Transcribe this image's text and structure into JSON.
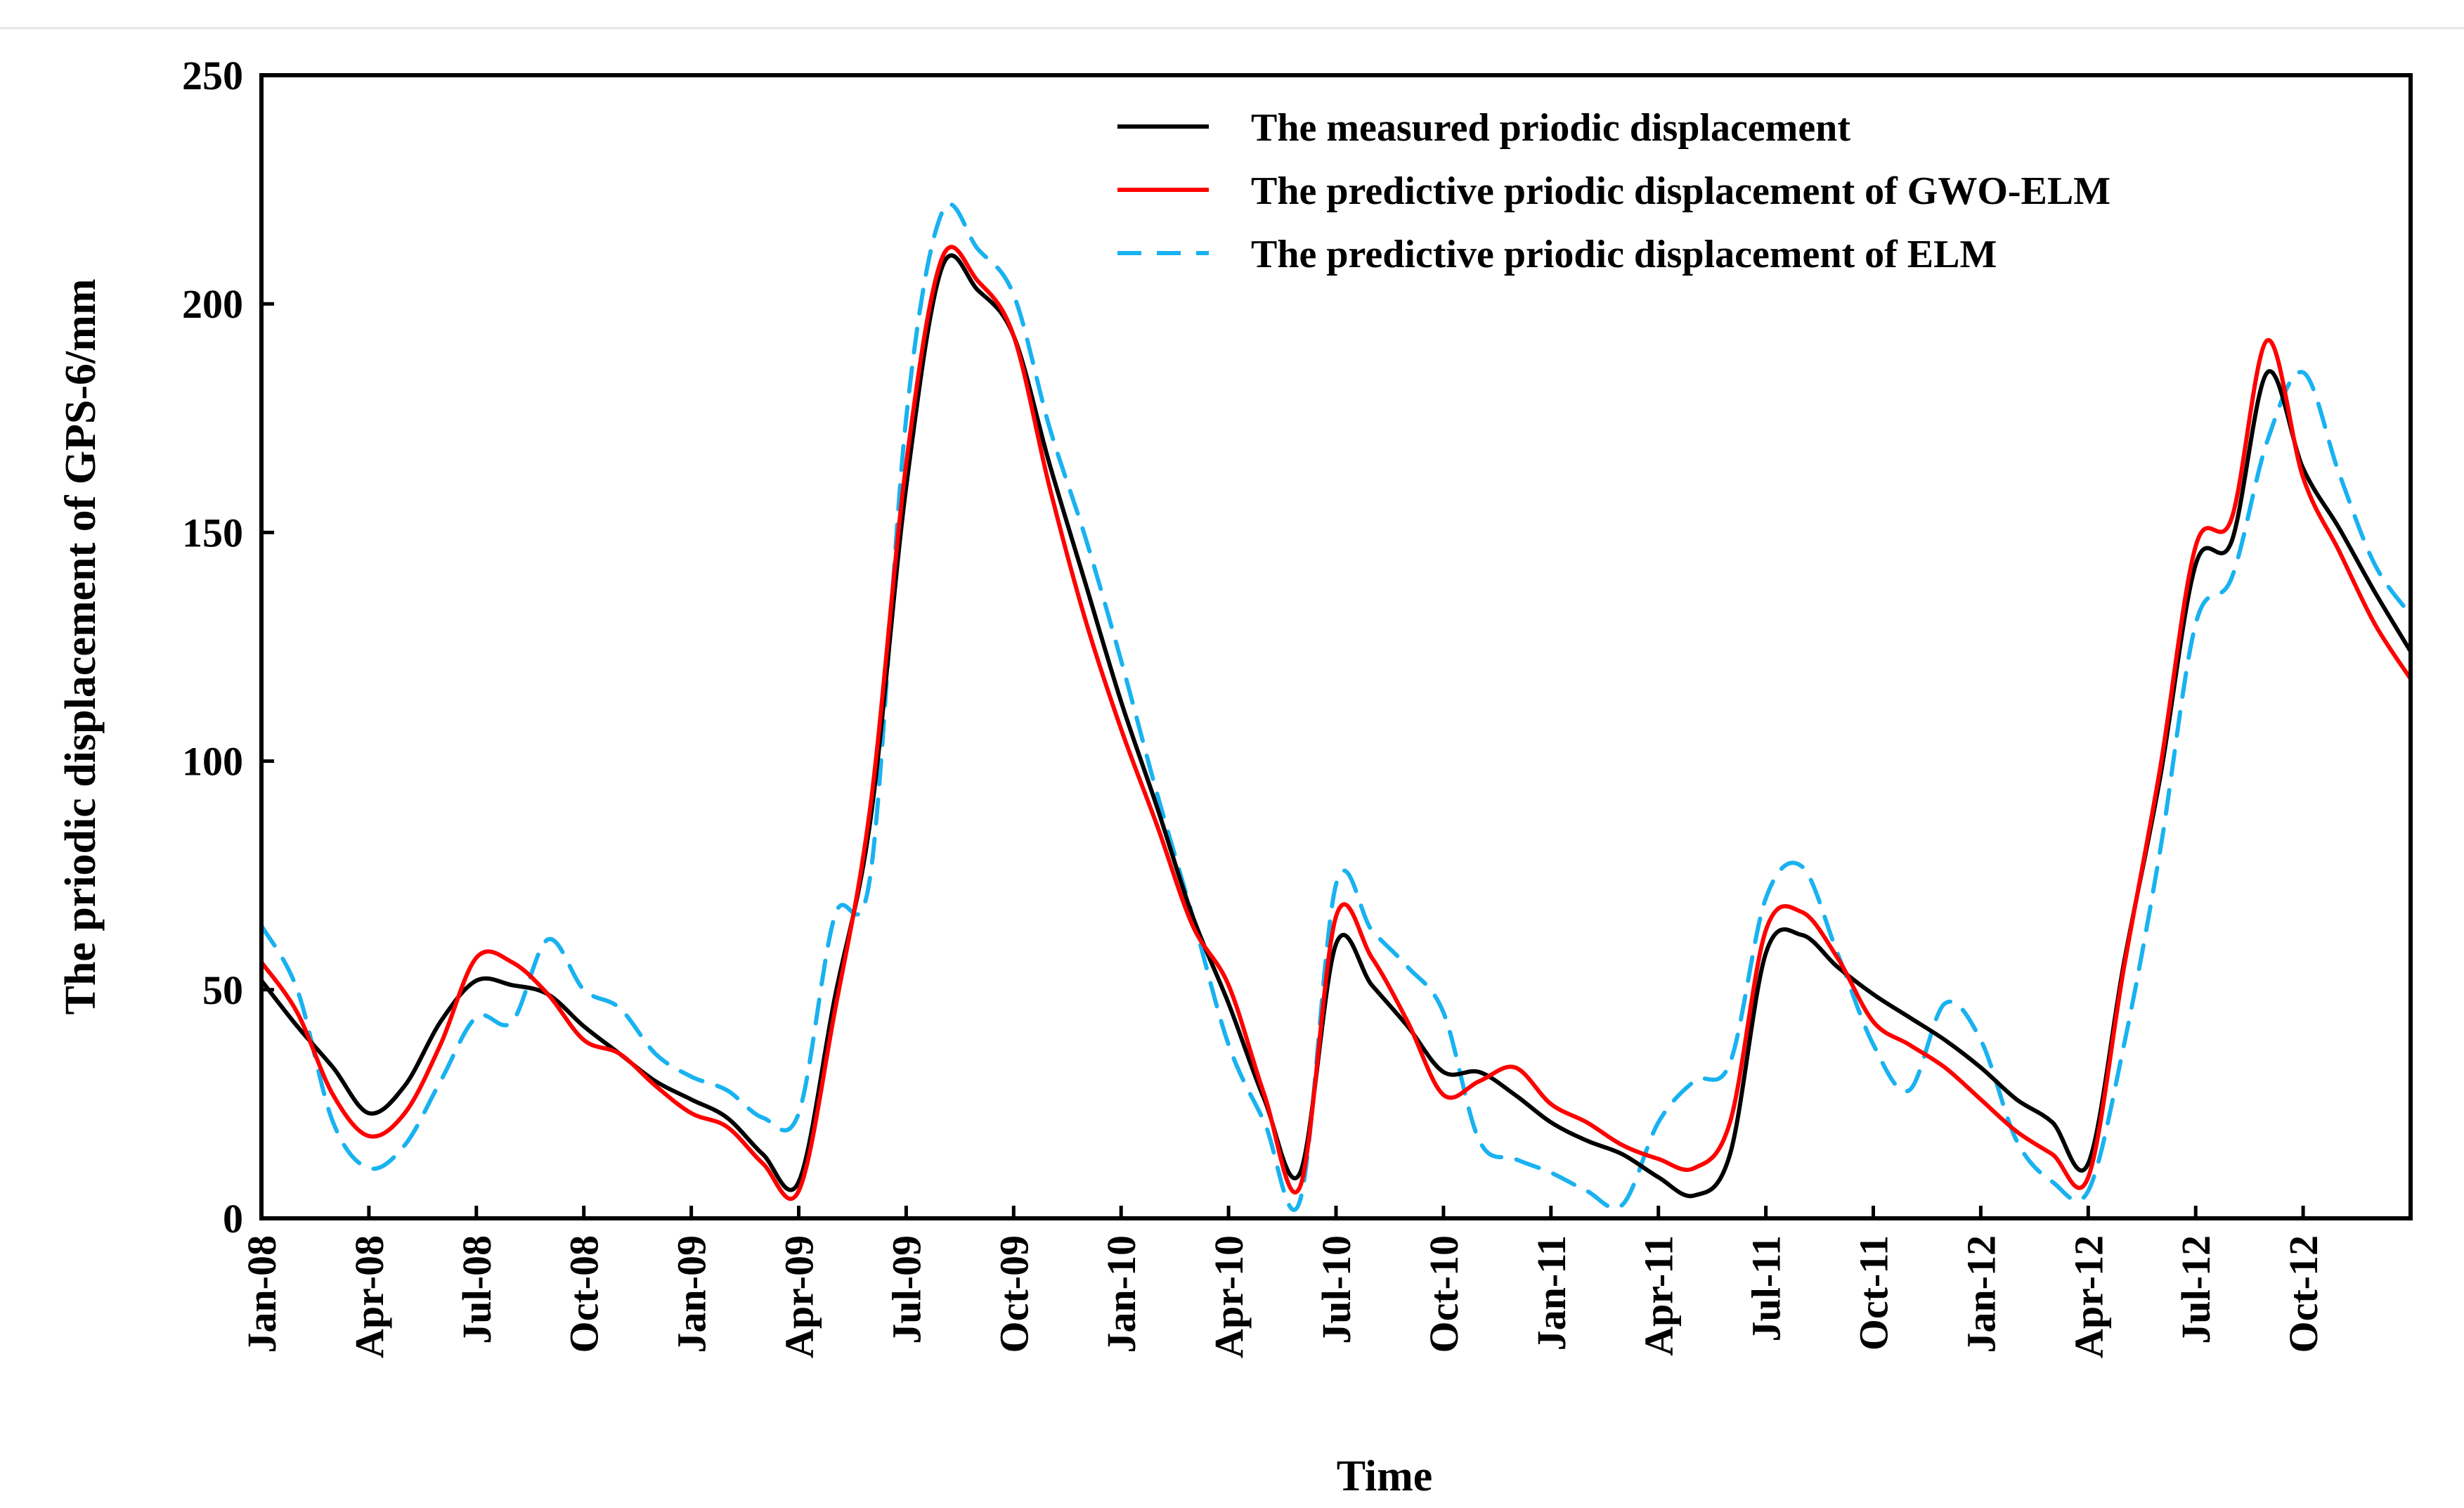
{
  "chart_data": {
    "type": "line",
    "title": "",
    "xlabel": "Time",
    "ylabel": "The priodic displacement of GPS-6/mm",
    "ylim": [
      0,
      250
    ],
    "xlim": [
      0,
      60
    ],
    "yticks": [
      0,
      50,
      100,
      150,
      200,
      250
    ],
    "xticks": [
      {
        "pos": 0,
        "label": "Jan-08"
      },
      {
        "pos": 3,
        "label": "Apr-08"
      },
      {
        "pos": 6,
        "label": "Jul-08"
      },
      {
        "pos": 9,
        "label": "Oct-08"
      },
      {
        "pos": 12,
        "label": "Jan-09"
      },
      {
        "pos": 15,
        "label": "Apr-09"
      },
      {
        "pos": 18,
        "label": "Jul-09"
      },
      {
        "pos": 21,
        "label": "Oct-09"
      },
      {
        "pos": 24,
        "label": "Jan-10"
      },
      {
        "pos": 27,
        "label": "Apr-10"
      },
      {
        "pos": 30,
        "label": "Jul-10"
      },
      {
        "pos": 33,
        "label": "Oct-10"
      },
      {
        "pos": 36,
        "label": "Jan-11"
      },
      {
        "pos": 39,
        "label": "Apr-11"
      },
      {
        "pos": 42,
        "label": "Jul-11"
      },
      {
        "pos": 45,
        "label": "Oct-11"
      },
      {
        "pos": 48,
        "label": "Jan-12"
      },
      {
        "pos": 51,
        "label": "Apr-12"
      },
      {
        "pos": 54,
        "label": "Jul-12"
      },
      {
        "pos": 57,
        "label": "Oct-12"
      }
    ],
    "legend_position": "top-right",
    "series": [
      {
        "name": "The measured priodic displacement",
        "color": "#000000",
        "style": "solid",
        "x": [
          0,
          1,
          2,
          3,
          4,
          5,
          6,
          7,
          8,
          9,
          10,
          11,
          12,
          13,
          14,
          15,
          16,
          17,
          18,
          19,
          20,
          21,
          22,
          23,
          24,
          25,
          26,
          27,
          28,
          29,
          30,
          31,
          32,
          33,
          34,
          35,
          36,
          37,
          38,
          39,
          40,
          41,
          42,
          43,
          44,
          45,
          46,
          47,
          48,
          49,
          50,
          51,
          52,
          53,
          54,
          55,
          56,
          57,
          58,
          59,
          60
        ],
        "y": [
          52,
          42,
          33,
          23,
          29,
          43,
          52,
          51,
          49,
          42,
          36,
          30,
          26,
          22,
          14,
          8,
          48,
          87,
          160,
          208,
          203,
          193,
          165,
          139,
          113,
          90,
          66,
          47,
          26,
          10,
          60,
          51,
          42,
          32,
          32,
          27,
          21,
          17,
          14,
          9,
          5,
          14,
          58,
          62,
          55,
          49,
          44,
          39,
          33,
          26,
          21,
          12,
          56,
          96,
          143,
          148,
          185,
          164,
          151,
          137,
          124
        ]
      },
      {
        "name": "The predictive priodic displacement of GWO-ELM",
        "color": "#ff0000",
        "style": "solid",
        "x": [
          0,
          1,
          2,
          3,
          4,
          5,
          6,
          7,
          8,
          9,
          10,
          11,
          12,
          13,
          14,
          15,
          16,
          17,
          18,
          19,
          20,
          21,
          22,
          23,
          24,
          25,
          26,
          27,
          28,
          29,
          30,
          31,
          32,
          33,
          34,
          35,
          36,
          37,
          38,
          39,
          40,
          41,
          42,
          43,
          44,
          45,
          46,
          47,
          48,
          49,
          50,
          51,
          52,
          53,
          54,
          55,
          56,
          57,
          58,
          59,
          60
        ],
        "y": [
          56,
          45,
          27,
          18,
          23,
          38,
          57,
          56,
          49,
          39,
          36,
          29,
          23,
          20,
          12,
          6,
          45,
          90,
          165,
          210,
          205,
          193,
          160,
          131,
          107,
          86,
          64,
          51,
          27,
          7,
          66,
          57,
          43,
          27,
          30,
          33,
          25,
          21,
          16,
          13,
          11,
          21,
          63,
          67,
          57,
          43,
          38,
          33,
          26,
          19,
          14,
          9,
          55,
          98,
          147,
          153,
          192,
          162,
          146,
          130,
          118
        ]
      },
      {
        "name": "The predictive priodic displacement of ELM",
        "color": "#19b2f0",
        "style": "dashed",
        "x": [
          0,
          1,
          2,
          3,
          4,
          5,
          6,
          7,
          8,
          9,
          10,
          11,
          12,
          13,
          14,
          15,
          16,
          17,
          18,
          19,
          20,
          21,
          22,
          23,
          24,
          25,
          26,
          27,
          28,
          29,
          30,
          31,
          32,
          33,
          34,
          35,
          36,
          37,
          38,
          39,
          40,
          41,
          42,
          43,
          44,
          45,
          46,
          47,
          48,
          49,
          50,
          51,
          52,
          53,
          54,
          55,
          56,
          57,
          58,
          59,
          60
        ],
        "y": [
          64,
          50,
          21,
          11,
          16,
          30,
          44,
          43,
          61,
          50,
          46,
          36,
          31,
          28,
          22,
          23,
          66,
          75,
          175,
          220,
          212,
          202,
          173,
          149,
          122,
          93,
          66,
          38,
          21,
          4,
          73,
          63,
          55,
          45,
          17,
          13,
          10,
          6,
          3,
          21,
          30,
          34,
          70,
          77,
          58,
          38,
          28,
          47,
          39,
          17,
          8,
          6,
          38,
          80,
          130,
          140,
          170,
          185,
          163,
          143,
          132
        ]
      }
    ]
  }
}
